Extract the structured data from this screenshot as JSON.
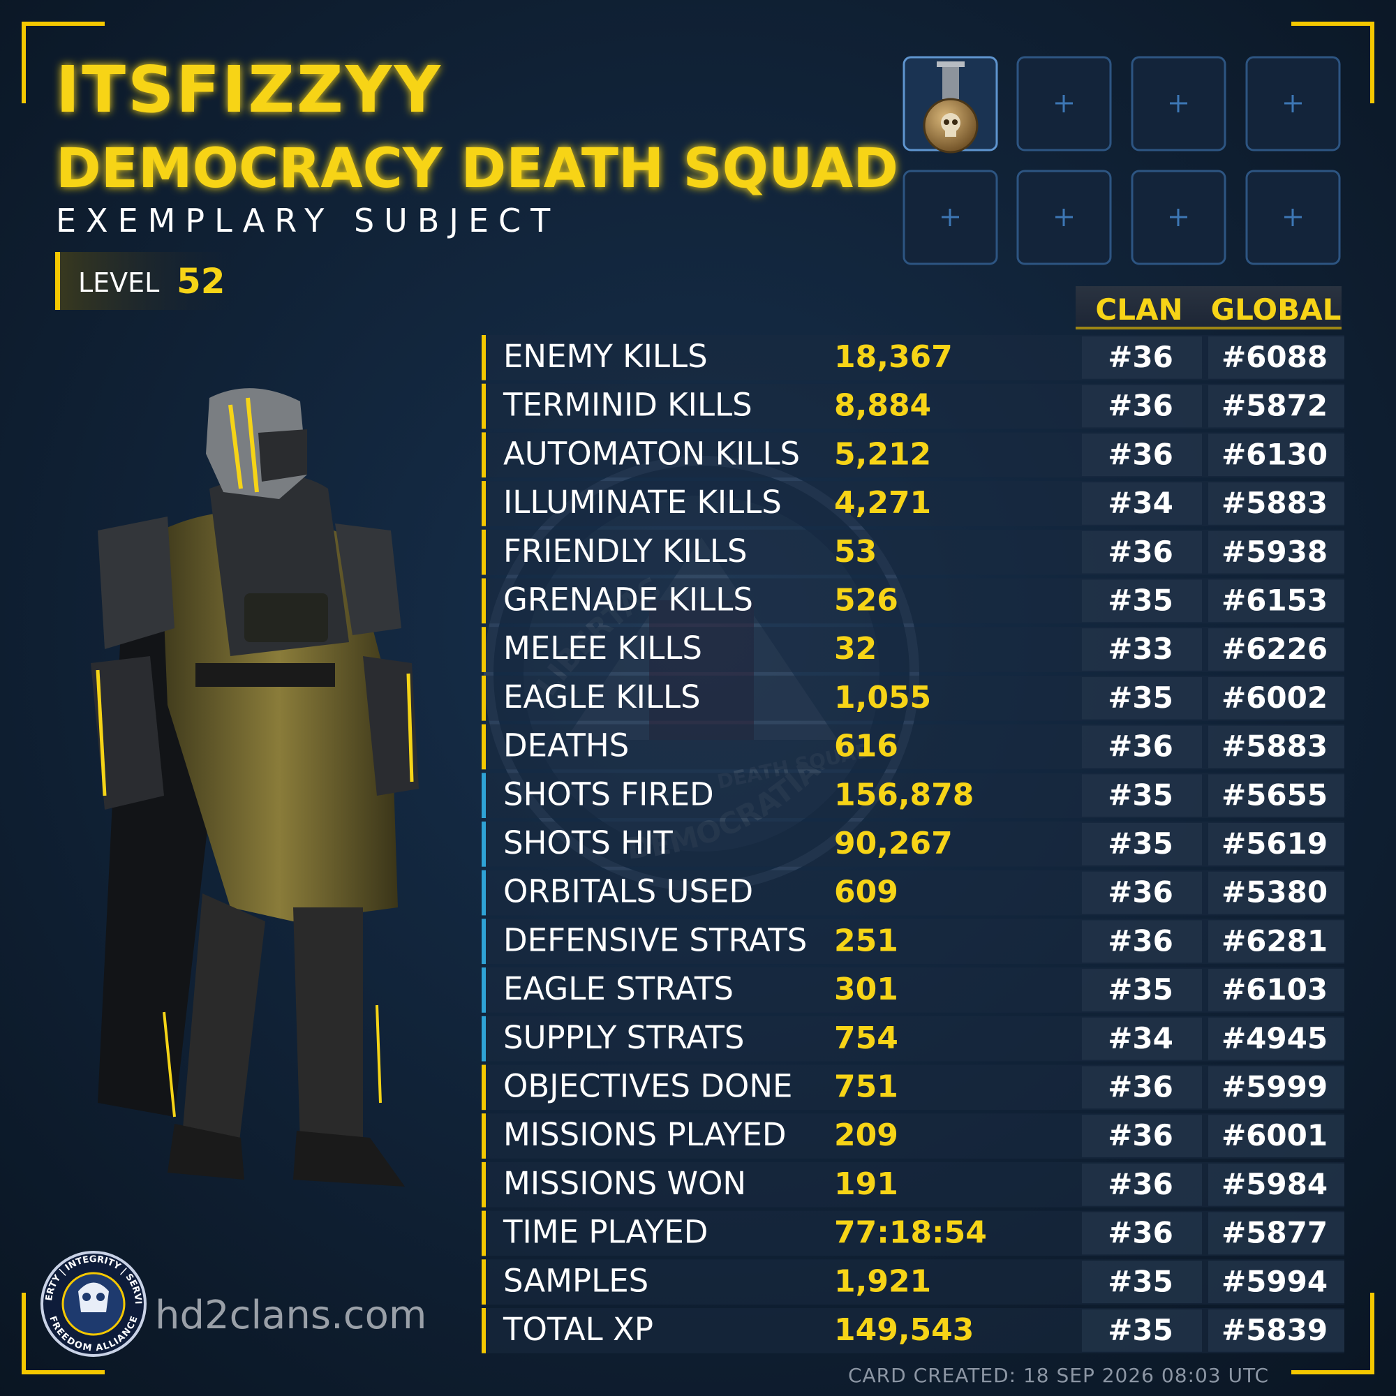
{
  "player": {
    "name": "ITSFIZZYY",
    "clan": "DEMOCRACY DEATH SQUAD",
    "title": "EXEMPLARY SUBJECT",
    "level_label": "LEVEL",
    "level": "52"
  },
  "table": {
    "headers": [
      "CLAN",
      "GLOBAL"
    ],
    "rows": [
      {
        "label": "ENEMY KILLS",
        "value": "18,367",
        "clan_rank": "#36",
        "global_rank": "#6088",
        "accent": "#f5c800"
      },
      {
        "label": "TERMINID KILLS",
        "value": "8,884",
        "clan_rank": "#36",
        "global_rank": "#5872",
        "accent": "#f5c800"
      },
      {
        "label": "AUTOMATON KILLS",
        "value": "5,212",
        "clan_rank": "#36",
        "global_rank": "#6130",
        "accent": "#f5c800"
      },
      {
        "label": "ILLUMINATE KILLS",
        "value": "4,271",
        "clan_rank": "#34",
        "global_rank": "#5883",
        "accent": "#f5c800"
      },
      {
        "label": "FRIENDLY KILLS",
        "value": "53",
        "clan_rank": "#36",
        "global_rank": "#5938",
        "accent": "#f5c800"
      },
      {
        "label": "GRENADE KILLS",
        "value": "526",
        "clan_rank": "#35",
        "global_rank": "#6153",
        "accent": "#f5c800"
      },
      {
        "label": "MELEE KILLS",
        "value": "32",
        "clan_rank": "#33",
        "global_rank": "#6226",
        "accent": "#f5c800"
      },
      {
        "label": "EAGLE KILLS",
        "value": "1,055",
        "clan_rank": "#35",
        "global_rank": "#6002",
        "accent": "#f5c800"
      },
      {
        "label": "DEATHS",
        "value": "616",
        "clan_rank": "#36",
        "global_rank": "#5883",
        "accent": "#f5c800"
      },
      {
        "label": "SHOTS FIRED",
        "value": "156,878",
        "clan_rank": "#35",
        "global_rank": "#5655",
        "accent": "#2fa3d6"
      },
      {
        "label": "SHOTS HIT",
        "value": "90,267",
        "clan_rank": "#35",
        "global_rank": "#5619",
        "accent": "#2fa3d6"
      },
      {
        "label": "ORBITALS USED",
        "value": "609",
        "clan_rank": "#36",
        "global_rank": "#5380",
        "accent": "#2fa3d6"
      },
      {
        "label": "DEFENSIVE STRATS",
        "value": "251",
        "clan_rank": "#36",
        "global_rank": "#6281",
        "accent": "#2fa3d6"
      },
      {
        "label": "EAGLE STRATS",
        "value": "301",
        "clan_rank": "#35",
        "global_rank": "#6103",
        "accent": "#2fa3d6"
      },
      {
        "label": "SUPPLY STRATS",
        "value": "754",
        "clan_rank": "#34",
        "global_rank": "#4945",
        "accent": "#2fa3d6"
      },
      {
        "label": "OBJECTIVES DONE",
        "value": "751",
        "clan_rank": "#36",
        "global_rank": "#5999",
        "accent": "#f5c800"
      },
      {
        "label": "MISSIONS PLAYED",
        "value": "209",
        "clan_rank": "#36",
        "global_rank": "#6001",
        "accent": "#f5c800"
      },
      {
        "label": "MISSIONS WON",
        "value": "191",
        "clan_rank": "#36",
        "global_rank": "#5984",
        "accent": "#f5c800"
      },
      {
        "label": "TIME PLAYED",
        "value": "77:18:54",
        "clan_rank": "#36",
        "global_rank": "#5877",
        "accent": "#f5c800"
      },
      {
        "label": "SAMPLES",
        "value": "1,921",
        "clan_rank": "#35",
        "global_rank": "#5994",
        "accent": "#f5c800"
      },
      {
        "label": "TOTAL XP",
        "value": "149,543",
        "clan_rank": "#35",
        "global_rank": "#5839",
        "accent": "#f5c800"
      }
    ]
  },
  "watermark": {
    "texts": [
      "LIBERTAS",
      "DEATH SQUAD",
      "DEMOCRATIA"
    ]
  },
  "logo": {
    "top": "LIBERTY | INTEGRITY | SERVICE",
    "bottom": "FREEDOM ALLIANCE"
  },
  "footer": {
    "site": "hd2clans.com",
    "created": "CARD CREATED: 18 SEP 2026 08:03 UTC"
  }
}
